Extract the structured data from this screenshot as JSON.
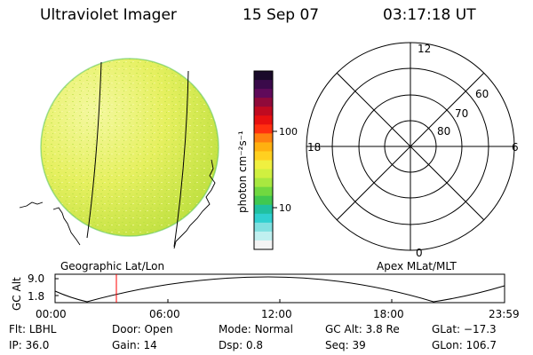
{
  "header": {
    "title": "Ultraviolet Imager",
    "date": "15 Sep 07",
    "time": "03:17:18 UT"
  },
  "colorbar": {
    "unit_label": "photon cm⁻²s⁻¹",
    "ticks": [
      "100",
      "10"
    ],
    "colors": [
      "#1a0a2a",
      "#3a0a4a",
      "#600a5a",
      "#900a3a",
      "#c00a20",
      "#e81010",
      "#ff3010",
      "#ff8010",
      "#ffb010",
      "#ffd020",
      "#f0f040",
      "#d0f040",
      "#a8e840",
      "#70d840",
      "#40c850",
      "#20c0a0",
      "#30d0d0",
      "#80e0e0",
      "#c0f0f0",
      "#f4f4f4"
    ]
  },
  "left_panel": {
    "caption": "Geographic Lat/Lon"
  },
  "right_panel": {
    "caption": "Apex MLat/MLT",
    "mlt_labels": [
      "12",
      "18",
      "6",
      "0"
    ],
    "lat_labels": [
      "60",
      "70",
      "80"
    ]
  },
  "timeline": {
    "axis_label": "GC Alt",
    "y_ticks": [
      "9.0",
      "1.8"
    ],
    "x_ticks": [
      "00:00",
      "06:00",
      "12:00",
      "18:00",
      "23:59"
    ],
    "marker_color": "#ff0000"
  },
  "info": {
    "row1": [
      {
        "label": "Flt:",
        "value": "LBHL"
      },
      {
        "label": "Door:",
        "value": "Open"
      },
      {
        "label": "Mode:",
        "value": "Normal"
      },
      {
        "label": "GC Alt:",
        "value": "3.8 Re"
      },
      {
        "label": "GLat:",
        "value": "−17.3"
      }
    ],
    "row2": [
      {
        "label": "IP:",
        "value": "36.0"
      },
      {
        "label": "Gain:",
        "value": "14"
      },
      {
        "label": "Dsp:",
        "value": "0.8"
      },
      {
        "label": "Seq:",
        "value": "39"
      },
      {
        "label": "GLon:",
        "value": "106.7"
      }
    ]
  }
}
